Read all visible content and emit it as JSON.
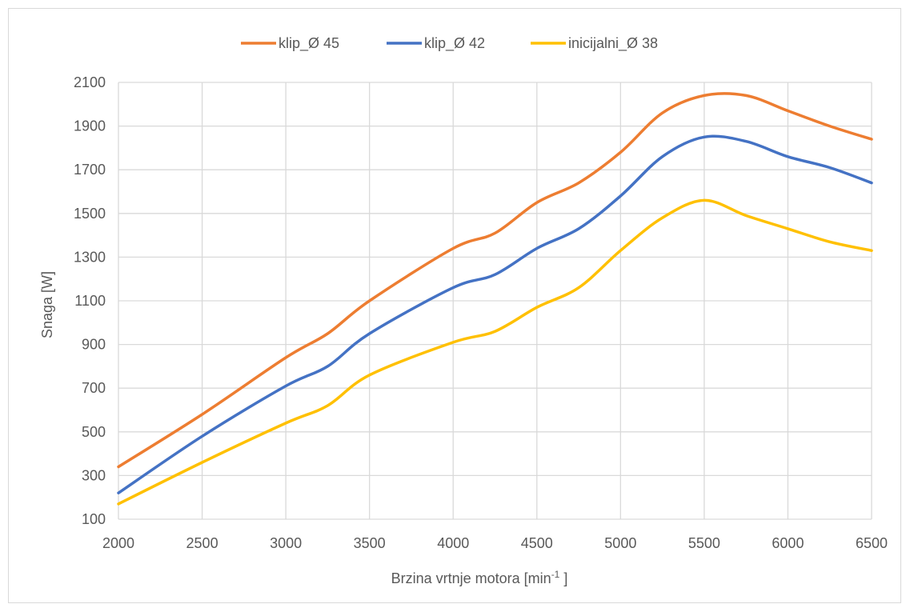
{
  "chart_data": {
    "type": "line",
    "title": "",
    "xlabel_main": "Brzina vrtnje motora [min",
    "xlabel_sup": "-1",
    "xlabel_end": " ]",
    "ylabel": "Snaga [W]",
    "xlim": [
      2000,
      6500
    ],
    "ylim": [
      100,
      2100
    ],
    "x_ticks": [
      2000,
      2500,
      3000,
      3500,
      4000,
      4500,
      5000,
      5500,
      6000,
      6500
    ],
    "y_ticks": [
      100,
      300,
      500,
      700,
      900,
      1100,
      1300,
      1500,
      1700,
      1900,
      2100
    ],
    "grid": true,
    "legend_position": "top",
    "x": [
      2000,
      2500,
      3000,
      3250,
      3500,
      4000,
      4250,
      4500,
      4750,
      5000,
      5250,
      5500,
      5750,
      6000,
      6250,
      6500
    ],
    "series": [
      {
        "name": "klip_Ø 45",
        "color": "#ED7D31",
        "values": [
          340,
          580,
          840,
          950,
          1100,
          1340,
          1410,
          1550,
          1640,
          1780,
          1960,
          2040,
          2040,
          1970,
          1900,
          1840
        ]
      },
      {
        "name": "klip_Ø 42",
        "color": "#4472C4",
        "values": [
          220,
          480,
          710,
          800,
          950,
          1160,
          1220,
          1340,
          1430,
          1580,
          1760,
          1850,
          1830,
          1760,
          1710,
          1640
        ]
      },
      {
        "name": "inicijalni_Ø 38",
        "color": "#FFC000",
        "values": [
          170,
          360,
          540,
          620,
          760,
          910,
          960,
          1070,
          1160,
          1330,
          1480,
          1560,
          1490,
          1430,
          1370,
          1330
        ]
      }
    ]
  }
}
